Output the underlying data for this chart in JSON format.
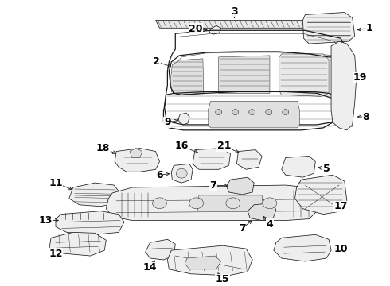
{
  "bg_color": "#ffffff",
  "line_color": "#1a1a1a",
  "label_color": "#000000",
  "figsize": [
    4.9,
    3.6
  ],
  "dpi": 100,
  "label_fontsize": 9,
  "lw_main": 0.9,
  "lw_thin": 0.55,
  "lw_detail": 0.35,
  "fc_main": "#f5f5f5",
  "fc_dark": "#e0e0e0",
  "fc_mid": "#eeeeee"
}
